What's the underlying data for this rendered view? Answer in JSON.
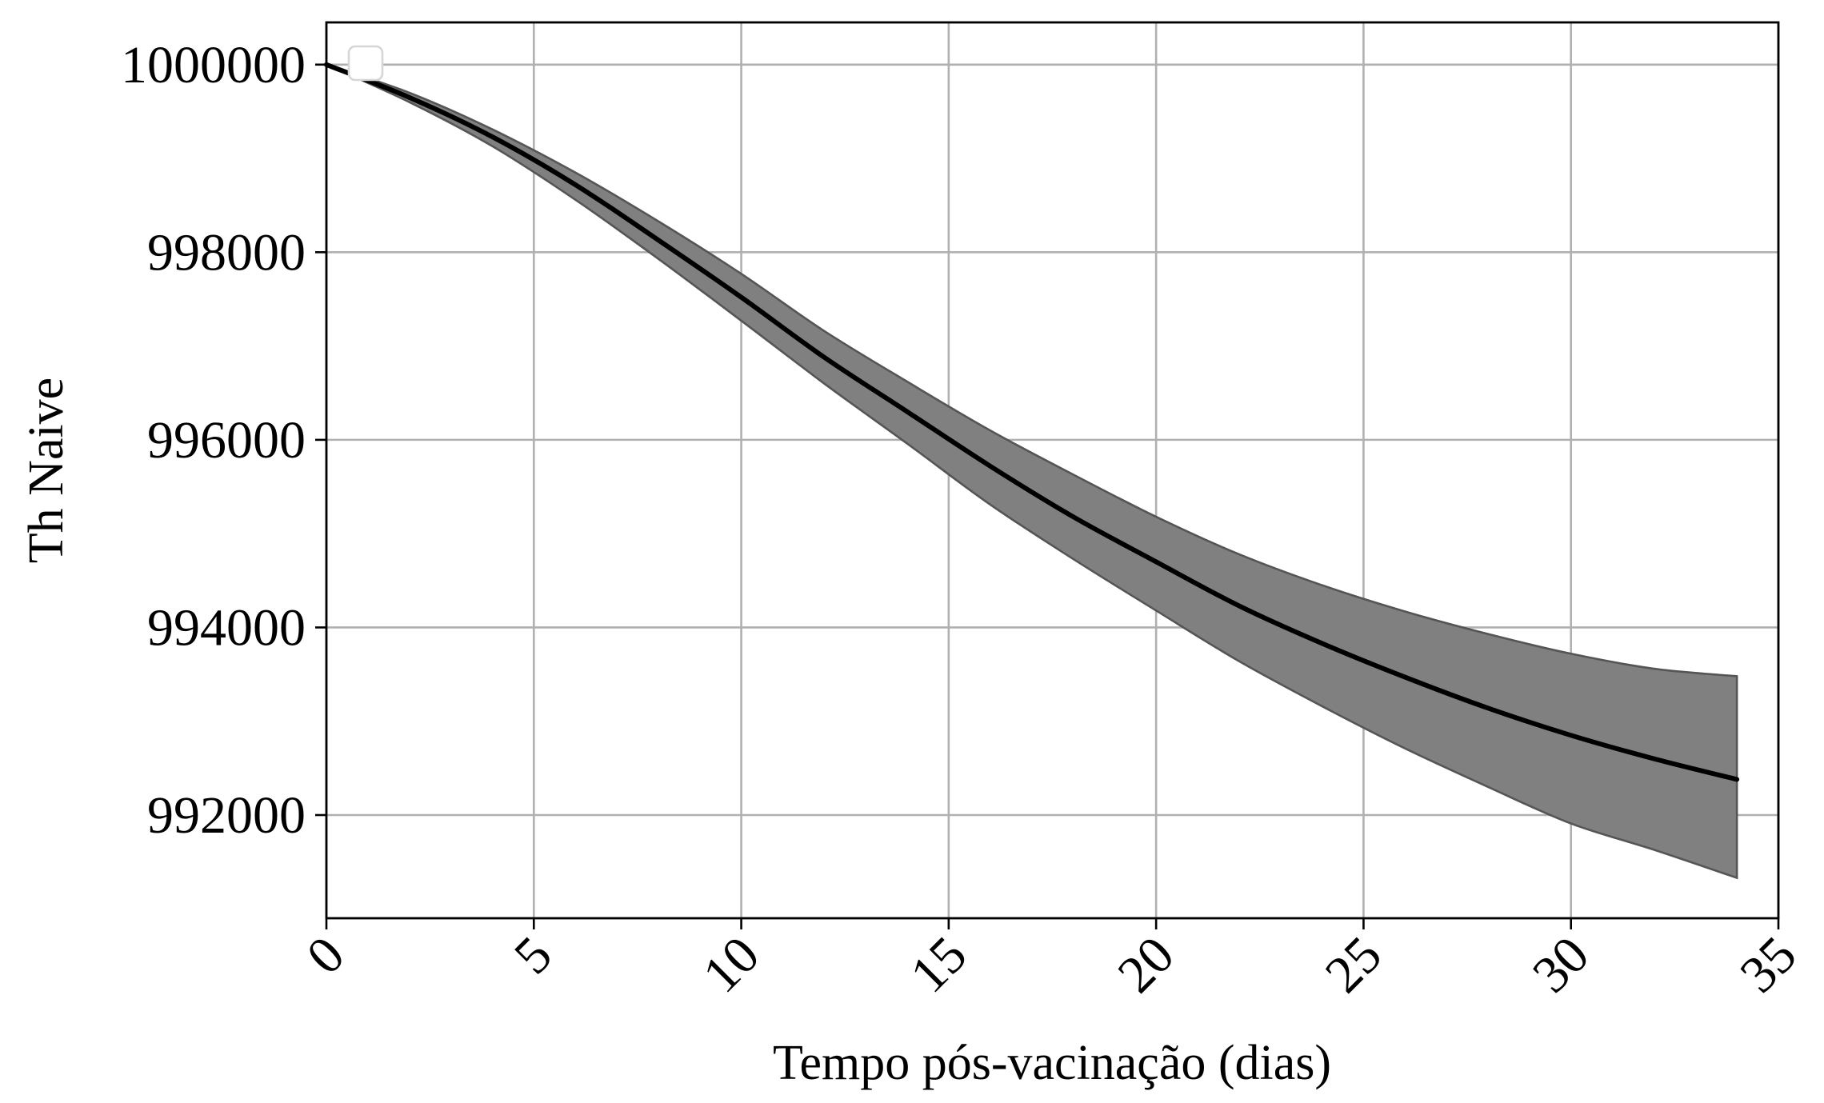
{
  "chart_data": {
    "type": "line",
    "xlabel": "Tempo pós-vacinação (dias)",
    "ylabel": "Th Naive",
    "xlim": [
      0,
      35
    ],
    "ylim": [
      990900,
      1000450
    ],
    "x_ticks": [
      0,
      5,
      10,
      15,
      20,
      25,
      30,
      35
    ],
    "x_tick_labels": [
      "0",
      "5",
      "10",
      "15",
      "20",
      "25",
      "30",
      "35"
    ],
    "y_ticks": [
      992000,
      994000,
      996000,
      998000,
      1000000
    ],
    "y_tick_labels": [
      "992000",
      "994000",
      "996000",
      "998000",
      "1000000"
    ],
    "grid": true,
    "legend": "top-left",
    "colors": {
      "line": "#000000",
      "band_fill": "#808080",
      "band_edge": "#555555",
      "grid": "#b0b0b0"
    },
    "series": [
      {
        "x": [
          0,
          2,
          4,
          6,
          8,
          10,
          12,
          14,
          16,
          18,
          20,
          22,
          24,
          26,
          28,
          30,
          32,
          34
        ],
        "y": [
          1000000,
          999650,
          999230,
          998720,
          998130,
          997520,
          996880,
          996300,
          995720,
          995180,
          994700,
          994230,
          993830,
          993470,
          993140,
          992850,
          992600,
          992380
        ],
        "lower": [
          1000000,
          999600,
          999130,
          998560,
          997930,
          997270,
          996600,
          995960,
          995310,
          994730,
          994180,
          993640,
          993160,
          992710,
          992300,
          991910,
          991630,
          991330
        ],
        "upper": [
          1000000,
          999700,
          999310,
          998850,
          998330,
          997770,
          997160,
          996620,
          996100,
          995630,
          995180,
          994780,
          994450,
          994170,
          993930,
          993720,
          993560,
          993480
        ]
      }
    ]
  }
}
